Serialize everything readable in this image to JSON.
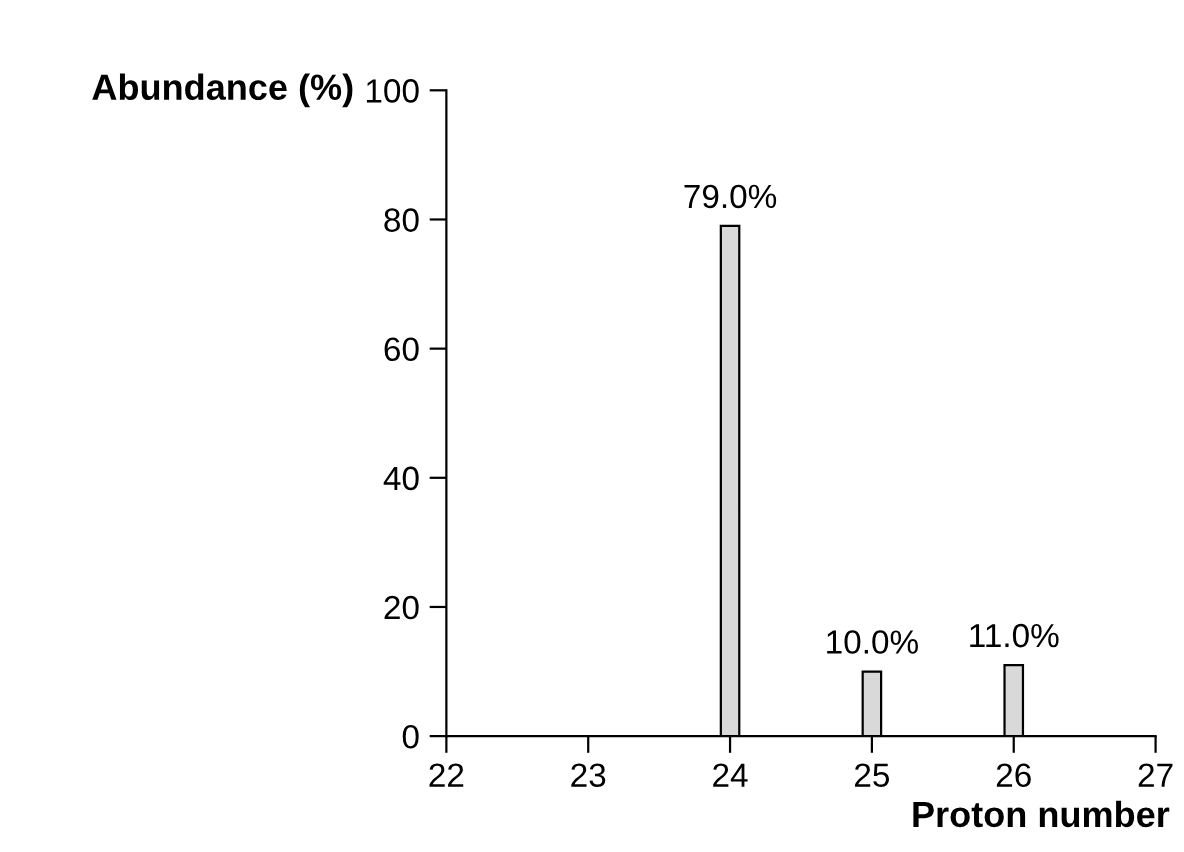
{
  "chart_data": {
    "type": "bar",
    "xlabel": "Proton number",
    "ylabel": "Abundance (%)",
    "x": [
      24,
      25,
      26
    ],
    "values": [
      79,
      10,
      11
    ],
    "color": "#d9d9d9",
    "value_labels": [
      "79.0%",
      "10.0%",
      "11.0%"
    ],
    "xlim": [
      22,
      27
    ],
    "xticks": [
      22,
      23,
      24,
      25,
      26,
      27
    ],
    "ylim": [
      0,
      100
    ],
    "yticks": [
      0,
      20,
      40,
      60,
      80,
      100
    ],
    "grid": false,
    "legend": false
  }
}
